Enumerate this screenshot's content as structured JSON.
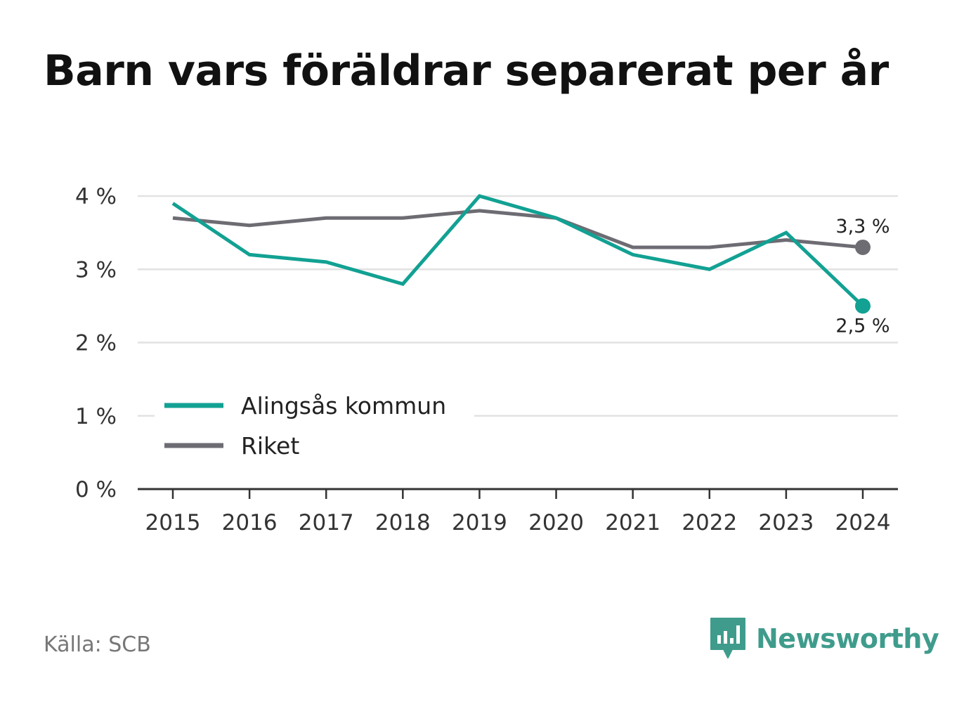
{
  "title": "Barn vars föräldrar separerat per år",
  "source": "Källa: SCB",
  "brand": {
    "name": "Newsworthy",
    "icon": "newsworthy-logo-icon",
    "color": "#3f9c8c"
  },
  "colors": {
    "alingsas": "#12a193",
    "riket": "#6d6c73",
    "grid": "#e2e2e2",
    "axis": "#333333"
  },
  "chart_data": {
    "type": "line",
    "title": "Barn vars föräldrar separerat per år",
    "xlabel": "",
    "ylabel": "",
    "x": [
      "2015",
      "2016",
      "2017",
      "2018",
      "2019",
      "2020",
      "2021",
      "2022",
      "2023",
      "2024"
    ],
    "ylim": [
      0,
      4
    ],
    "yticks": [
      0,
      1,
      2,
      3,
      4
    ],
    "ytick_labels": [
      "0 %",
      "1 %",
      "2 %",
      "3 %",
      "4 %"
    ],
    "grid": true,
    "legend": "bottom-left",
    "series": [
      {
        "name": "Alingsås kommun",
        "values": [
          3.9,
          3.2,
          3.1,
          2.8,
          4.0,
          3.7,
          3.2,
          3.0,
          3.5,
          2.5
        ],
        "end_label": "2,5 %"
      },
      {
        "name": "Riket",
        "values": [
          3.7,
          3.6,
          3.7,
          3.7,
          3.8,
          3.7,
          3.3,
          3.3,
          3.4,
          3.3
        ],
        "end_label": "3,3 %"
      }
    ]
  }
}
